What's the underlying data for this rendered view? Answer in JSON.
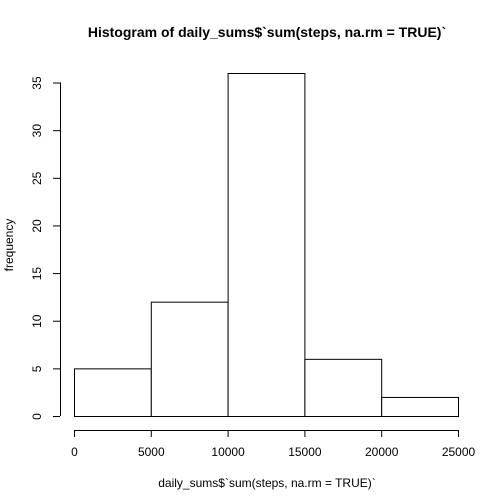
{
  "chart_data": {
    "type": "bar",
    "title": "Histogram of daily_sums$`sum(steps, na.rm = TRUE)`",
    "xlabel": "daily_sums$`sum(steps, na.rm = TRUE)`",
    "ylabel": "frequency",
    "bins": [
      {
        "from": 0,
        "to": 5000,
        "count": 5
      },
      {
        "from": 5000,
        "to": 10000,
        "count": 12
      },
      {
        "from": 10000,
        "to": 15000,
        "count": 36
      },
      {
        "from": 15000,
        "to": 20000,
        "count": 6
      },
      {
        "from": 20000,
        "to": 25000,
        "count": 2
      }
    ],
    "xlim": [
      0,
      25000
    ],
    "ylim": [
      0,
      36
    ],
    "xticks": [
      0,
      5000,
      10000,
      15000,
      20000,
      25000
    ],
    "yticks": [
      0,
      5,
      10,
      15,
      20,
      25,
      30,
      35
    ],
    "grid": false,
    "legend": "none"
  }
}
